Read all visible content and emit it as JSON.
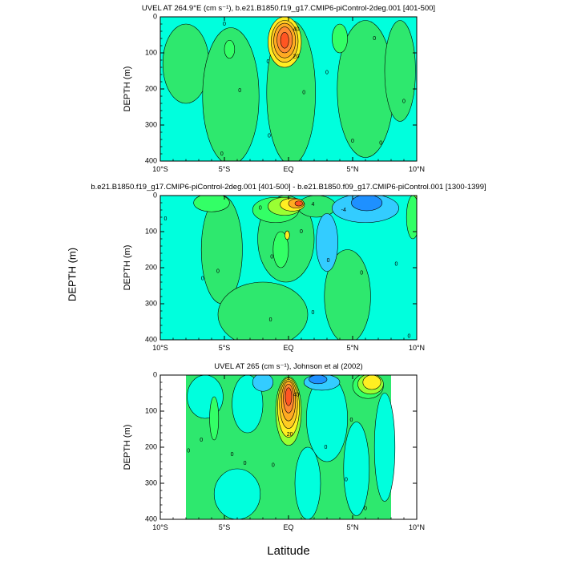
{
  "figure": {
    "side_ylabel": "DEPTH (m)",
    "bottom_xlabel": "Latitude"
  },
  "colors": {
    "blue": "#1e90ff",
    "lightblue": "#33ccff",
    "cyan": "#00ffdd",
    "teal": "#00e8c0",
    "green": "#2ee86e",
    "brightgreen": "#33ff66",
    "lime": "#99ff33",
    "yellow": "#ffee22",
    "orange1": "#ffcc22",
    "orange2": "#ffaa22",
    "orange3": "#ff8833",
    "red": "#ff5522",
    "line": "#000000"
  },
  "chart_data": [
    {
      "type": "heatmap",
      "title": "UVEL AT 264.9°E (cm s⁻¹), b.e21.B1850.f19_g17.CMIP6-piControl-2deg.001 [401-500]",
      "ylabel": "DEPTH (m)",
      "xlabel": "",
      "xlim": [
        -10,
        10
      ],
      "ylim": [
        400,
        0
      ],
      "x_ticks": [
        -10,
        -5,
        0,
        5,
        10
      ],
      "x_tick_labels": [
        "10°S",
        "5°S",
        "EQ",
        "5°N",
        "10°N"
      ],
      "y_ticks": [
        0,
        100,
        200,
        300,
        400
      ],
      "y_tick_labels": [
        "0",
        "100",
        "200",
        "300",
        "400"
      ],
      "background": "cyan",
      "features": [
        {
          "label": "",
          "color": "green",
          "lat": -8.0,
          "depth": 130,
          "rx": 1.8,
          "ry": 110
        },
        {
          "label": "",
          "color": "green",
          "lat": -4.5,
          "depth": 220,
          "rx": 2.2,
          "ry": 190
        },
        {
          "label": "",
          "color": "brightgreen",
          "lat": -4.6,
          "depth": 90,
          "rx": 0.4,
          "ry": 25
        },
        {
          "label": "",
          "color": "green",
          "lat": 0.2,
          "depth": 210,
          "rx": 1.9,
          "ry": 200
        },
        {
          "label": "",
          "color": "green",
          "lat": 6.0,
          "depth": 200,
          "rx": 2.2,
          "ry": 190
        },
        {
          "label": "",
          "color": "brightgreen",
          "lat": 4.0,
          "depth": 60,
          "rx": 0.6,
          "ry": 40
        },
        {
          "label": "",
          "color": "green",
          "lat": 8.7,
          "depth": 150,
          "rx": 1.2,
          "ry": 140
        },
        {
          "label": "",
          "color": "yellow",
          "lat": -0.3,
          "depth": 70,
          "rx": 1.3,
          "ry": 70
        },
        {
          "label": "",
          "color": "orange1",
          "lat": -0.3,
          "depth": 68,
          "rx": 1.05,
          "ry": 58
        },
        {
          "label": "",
          "color": "orange2",
          "lat": -0.3,
          "depth": 66,
          "rx": 0.85,
          "ry": 48
        },
        {
          "label": "",
          "color": "orange3",
          "lat": -0.3,
          "depth": 64,
          "rx": 0.6,
          "ry": 36
        },
        {
          "label": "",
          "color": "red",
          "lat": -0.3,
          "depth": 65,
          "rx": 0.32,
          "ry": 22
        }
      ],
      "contour_labels": [
        {
          "text": "40",
          "lat": 0.6,
          "depth": 35
        },
        {
          "text": "20",
          "lat": 0.6,
          "depth": 110
        },
        {
          "text": "0",
          "lat": -5.0,
          "depth": 20
        },
        {
          "text": "0",
          "lat": -1.6,
          "depth": 125
        },
        {
          "text": "0",
          "lat": -3.8,
          "depth": 205
        },
        {
          "text": "0",
          "lat": 1.2,
          "depth": 210
        },
        {
          "text": "0",
          "lat": 3.0,
          "depth": 155
        },
        {
          "text": "0",
          "lat": 6.7,
          "depth": 60
        },
        {
          "text": "0",
          "lat": 9.0,
          "depth": 235
        },
        {
          "text": "0",
          "lat": -1.5,
          "depth": 330
        },
        {
          "text": "0",
          "lat": 5.0,
          "depth": 345
        },
        {
          "text": "0",
          "lat": 7.2,
          "depth": 350
        },
        {
          "text": "0",
          "lat": -5.2,
          "depth": 380
        }
      ]
    },
    {
      "type": "heatmap",
      "title": "b.e21.B1850.f19_g17.CMIP6-piControl-2deg.001 [401-500] - b.e21.B1850.f09_g17.CMIP6-piControl.001 [1300-1399]",
      "ylabel": "DEPTH (m)",
      "xlabel": "",
      "xlim": [
        -10,
        10
      ],
      "ylim": [
        400,
        0
      ],
      "x_ticks": [
        -10,
        -5,
        0,
        5,
        10
      ],
      "x_tick_labels": [
        "10°S",
        "5°S",
        "EQ",
        "5°N",
        "10°N"
      ],
      "y_ticks": [
        0,
        100,
        200,
        300,
        400
      ],
      "y_tick_labels": [
        "0",
        "100",
        "200",
        "300",
        "400"
      ],
      "background": "cyan",
      "features": [
        {
          "label": "",
          "color": "green",
          "lat": -5.2,
          "depth": 150,
          "rx": 1.6,
          "ry": 150
        },
        {
          "label": "",
          "color": "green",
          "lat": -0.2,
          "depth": 120,
          "rx": 2.2,
          "ry": 120
        },
        {
          "label": "",
          "color": "green",
          "lat": -2.0,
          "depth": 330,
          "rx": 3.5,
          "ry": 90
        },
        {
          "label": "",
          "color": "green",
          "lat": 4.6,
          "depth": 280,
          "rx": 1.8,
          "ry": 130
        },
        {
          "label": "",
          "color": "green",
          "lat": 2.2,
          "depth": 30,
          "rx": 1.5,
          "ry": 30
        },
        {
          "label": "",
          "color": "brightgreen",
          "lat": -6.0,
          "depth": 20,
          "rx": 1.4,
          "ry": 25
        },
        {
          "label": "",
          "color": "brightgreen",
          "lat": -1.0,
          "depth": 40,
          "rx": 1.8,
          "ry": 35
        },
        {
          "label": "",
          "color": "brightgreen",
          "lat": -0.6,
          "depth": 150,
          "rx": 0.6,
          "ry": 50
        },
        {
          "label": "",
          "color": "lime",
          "lat": -0.3,
          "depth": 30,
          "rx": 1.3,
          "ry": 25
        },
        {
          "label": "",
          "color": "yellow",
          "lat": -0.1,
          "depth": 110,
          "rx": 0.18,
          "ry": 12
        },
        {
          "label": "",
          "color": "yellow",
          "lat": 0.3,
          "depth": 25,
          "rx": 0.95,
          "ry": 18
        },
        {
          "label": "",
          "color": "orange2",
          "lat": 0.6,
          "depth": 22,
          "rx": 0.6,
          "ry": 13
        },
        {
          "label": "",
          "color": "red",
          "lat": 0.8,
          "depth": 22,
          "rx": 0.3,
          "ry": 7
        },
        {
          "label": "",
          "color": "lightblue",
          "lat": 3.0,
          "depth": 130,
          "rx": 0.85,
          "ry": 80
        },
        {
          "label": "",
          "color": "lightblue",
          "lat": 6.0,
          "depth": 35,
          "rx": 2.6,
          "ry": 40
        },
        {
          "label": "",
          "color": "blue",
          "lat": 6.1,
          "depth": 20,
          "rx": 1.2,
          "ry": 22
        },
        {
          "label": "",
          "color": "lime",
          "lat": 9.9,
          "depth": 30,
          "rx": 0.3,
          "ry": 30
        },
        {
          "label": "",
          "color": "brightgreen",
          "lat": 9.7,
          "depth": 60,
          "rx": 0.5,
          "ry": 60
        }
      ],
      "contour_labels": [
        {
          "text": "4",
          "lat": 1.9,
          "depth": 25
        },
        {
          "text": "-4",
          "lat": 4.3,
          "depth": 40
        },
        {
          "text": "0",
          "lat": -9.6,
          "depth": 65
        },
        {
          "text": "0",
          "lat": -2.2,
          "depth": 35
        },
        {
          "text": "0",
          "lat": -1.3,
          "depth": 170
        },
        {
          "text": "0",
          "lat": -5.5,
          "depth": 210
        },
        {
          "text": "0",
          "lat": -6.7,
          "depth": 230
        },
        {
          "text": "0",
          "lat": 1.0,
          "depth": 100
        },
        {
          "text": "0",
          "lat": 3.1,
          "depth": 180
        },
        {
          "text": "0",
          "lat": 5.7,
          "depth": 215
        },
        {
          "text": "0",
          "lat": 8.4,
          "depth": 190
        },
        {
          "text": "0",
          "lat": 1.9,
          "depth": 325
        },
        {
          "text": "0",
          "lat": -1.4,
          "depth": 345
        },
        {
          "text": "0",
          "lat": 9.4,
          "depth": 390
        }
      ]
    },
    {
      "type": "heatmap",
      "title": "UVEL AT 265 (cm s⁻¹), Johnson et al (2002)",
      "ylabel": "DEPTH (m)",
      "xlabel": "Latitude",
      "xlim": [
        -10,
        10
      ],
      "ylim": [
        400,
        0
      ],
      "data_xlim": [
        -8,
        8
      ],
      "x_ticks": [
        -10,
        -5,
        0,
        5,
        10
      ],
      "x_tick_labels": [
        "10°S",
        "5°S",
        "EQ",
        "5°N",
        "10°N"
      ],
      "y_ticks": [
        0,
        100,
        200,
        300,
        400
      ],
      "y_tick_labels": [
        "0",
        "100",
        "200",
        "300",
        "400"
      ],
      "background": "green",
      "features": [
        {
          "label": "",
          "color": "cyan",
          "lat": -6.5,
          "depth": 60,
          "rx": 1.4,
          "ry": 60
        },
        {
          "label": "",
          "color": "cyan",
          "lat": -3.2,
          "depth": 80,
          "rx": 1.2,
          "ry": 80
        },
        {
          "label": "",
          "color": "cyan",
          "lat": 3.0,
          "depth": 120,
          "rx": 1.6,
          "ry": 120
        },
        {
          "label": "",
          "color": "cyan",
          "lat": 5.3,
          "depth": 260,
          "rx": 1.0,
          "ry": 130
        },
        {
          "label": "",
          "color": "cyan",
          "lat": -4.0,
          "depth": 330,
          "rx": 1.8,
          "ry": 70
        },
        {
          "label": "",
          "color": "cyan",
          "lat": 1.5,
          "depth": 300,
          "rx": 1.0,
          "ry": 100
        },
        {
          "label": "",
          "color": "cyan",
          "lat": 7.5,
          "depth": 200,
          "rx": 0.8,
          "ry": 150
        },
        {
          "label": "",
          "color": "lightblue",
          "lat": -2.0,
          "depth": 20,
          "rx": 0.8,
          "ry": 25
        },
        {
          "label": "",
          "color": "lightblue",
          "lat": 2.6,
          "depth": 20,
          "rx": 1.4,
          "ry": 22
        },
        {
          "label": "",
          "color": "blue",
          "lat": 2.3,
          "depth": 12,
          "rx": 0.7,
          "ry": 12
        },
        {
          "label": "",
          "color": "brightgreen",
          "lat": -5.8,
          "depth": 120,
          "rx": 0.35,
          "ry": 60
        },
        {
          "label": "",
          "color": "brightgreen",
          "lat": 6.2,
          "depth": 30,
          "rx": 1.2,
          "ry": 35
        },
        {
          "label": "",
          "color": "lime",
          "lat": 6.4,
          "depth": 25,
          "rx": 1.0,
          "ry": 28
        },
        {
          "label": "",
          "color": "yellow",
          "lat": 6.5,
          "depth": 20,
          "rx": 0.7,
          "ry": 20
        },
        {
          "label": "",
          "color": "lime",
          "lat": 0.0,
          "depth": 100,
          "rx": 1.0,
          "ry": 95
        },
        {
          "label": "",
          "color": "yellow",
          "lat": 0.0,
          "depth": 90,
          "rx": 0.85,
          "ry": 82
        },
        {
          "label": "",
          "color": "orange1",
          "lat": 0.0,
          "depth": 80,
          "rx": 0.7,
          "ry": 68
        },
        {
          "label": "",
          "color": "orange2",
          "lat": 0.0,
          "depth": 72,
          "rx": 0.55,
          "ry": 55
        },
        {
          "label": "",
          "color": "orange3",
          "lat": 0.0,
          "depth": 65,
          "rx": 0.4,
          "ry": 40
        },
        {
          "label": "",
          "color": "red",
          "lat": 0.0,
          "depth": 60,
          "rx": 0.25,
          "ry": 25
        }
      ],
      "contour_labels": [
        {
          "text": "40",
          "lat": 0.6,
          "depth": 55
        },
        {
          "text": "20",
          "lat": 0.1,
          "depth": 165
        },
        {
          "text": "0",
          "lat": -6.8,
          "depth": 180
        },
        {
          "text": "0",
          "lat": -7.8,
          "depth": 210
        },
        {
          "text": "0",
          "lat": -4.4,
          "depth": 220
        },
        {
          "text": "0",
          "lat": -3.4,
          "depth": 245
        },
        {
          "text": "0",
          "lat": -1.2,
          "depth": 250
        },
        {
          "text": "0",
          "lat": 2.9,
          "depth": 200
        },
        {
          "text": "0",
          "lat": 4.9,
          "depth": 125
        },
        {
          "text": "0",
          "lat": 4.5,
          "depth": 290
        },
        {
          "text": "0",
          "lat": 6.0,
          "depth": 370
        }
      ]
    }
  ]
}
